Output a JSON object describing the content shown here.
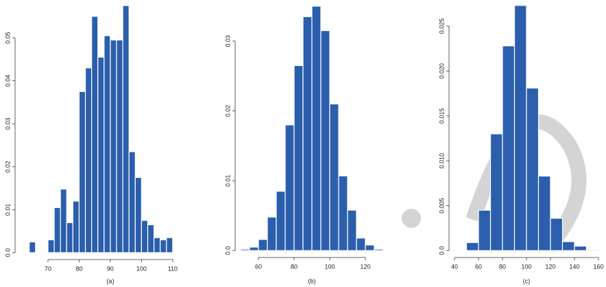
{
  "chart_data": [
    {
      "type": "histogram",
      "title": "(a)",
      "color": "#2b5fad",
      "bins": [
        64,
        66,
        68,
        70,
        72,
        74,
        76,
        78,
        80,
        82,
        84,
        86,
        88,
        90,
        92,
        94,
        96,
        98,
        100,
        102,
        104,
        106,
        108,
        110
      ],
      "values": [
        0.0025,
        0,
        0,
        0.003,
        0.0105,
        0.0148,
        0.007,
        0.012,
        0.0375,
        0.043,
        0.055,
        0.0455,
        0.0505,
        0.0495,
        0.0495,
        0.0575,
        0.0235,
        0.0175,
        0.0075,
        0.0065,
        0.0035,
        0.003,
        0.0035
      ],
      "xlim": [
        62,
        112
      ],
      "xticks": [
        70,
        80,
        90,
        100,
        110
      ],
      "ylim": [
        0,
        0.058
      ],
      "yticks": [
        {
          "value": 0,
          "label": "0.0"
        },
        0.01,
        0.02,
        0.03,
        0.04,
        0.05
      ]
    },
    {
      "type": "histogram",
      "title": "(b)",
      "color": "#2b5fad",
      "bins": [
        50,
        55,
        60,
        65,
        70,
        75,
        80,
        85,
        90,
        95,
        100,
        105,
        110,
        115,
        120,
        125,
        130
      ],
      "values": [
        0.0002,
        0.0005,
        0.0016,
        0.0048,
        0.0085,
        0.018,
        0.0265,
        0.0335,
        0.035,
        0.0315,
        0.021,
        0.0107,
        0.0058,
        0.0018,
        0.0008,
        0.0002
      ],
      "xlim": [
        48,
        132
      ],
      "xticks": [
        60,
        80,
        100,
        120
      ],
      "ylim": [
        0,
        0.035
      ],
      "yticks": [
        {
          "value": 0,
          "label": "0.0"
        },
        0.01,
        0.02,
        0.03
      ]
    },
    {
      "type": "histogram",
      "title": "(c)",
      "color": "#2b5fad",
      "bins": [
        50,
        60,
        70,
        80,
        90,
        100,
        110,
        120,
        130,
        140,
        150,
        160
      ],
      "values": [
        0.0009,
        0.0045,
        0.013,
        0.0228,
        0.0273,
        0.0181,
        0.0083,
        0.0036,
        0.001,
        0.0005,
        0.0001
      ],
      "xlim": [
        40,
        160
      ],
      "xticks": [
        40,
        60,
        80,
        100,
        120,
        140,
        160
      ],
      "ylim": [
        0,
        0.0275
      ],
      "yticks": [
        {
          "value": 0,
          "label": "0.0"
        },
        0.005,
        {
          "value": 0.01,
          "label": "0.010"
        },
        0.015,
        {
          "value": 0.02,
          "label": "0.020"
        },
        0.025
      ]
    }
  ]
}
